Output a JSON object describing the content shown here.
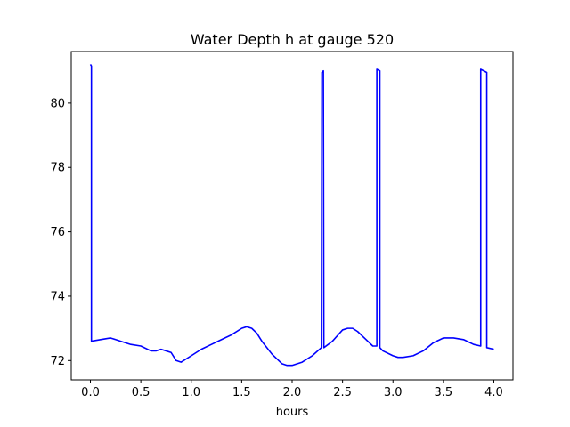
{
  "chart_data": {
    "type": "line",
    "title": "Water Depth h at gauge 520",
    "xlabel": "hours",
    "ylabel": "",
    "xlim": [
      -0.19,
      4.19
    ],
    "ylim": [
      71.4,
      81.6
    ],
    "xticks": [
      0.0,
      0.5,
      1.0,
      1.5,
      2.0,
      2.5,
      3.0,
      3.5,
      4.0
    ],
    "xtick_labels": [
      "0.0",
      "0.5",
      "1.0",
      "1.5",
      "2.0",
      "2.5",
      "3.0",
      "3.5",
      "4.0"
    ],
    "yticks": [
      72,
      74,
      76,
      78,
      80
    ],
    "ytick_labels": [
      "72",
      "74",
      "76",
      "78",
      "80"
    ],
    "grid": false,
    "series": [
      {
        "color": "#0000ff",
        "x": [
          0.0,
          0.01,
          0.01,
          0.1,
          0.2,
          0.25,
          0.3,
          0.4,
          0.5,
          0.6,
          0.65,
          0.7,
          0.75,
          0.8,
          0.85,
          0.9,
          1.0,
          1.1,
          1.2,
          1.3,
          1.4,
          1.5,
          1.55,
          1.6,
          1.65,
          1.7,
          1.8,
          1.9,
          1.95,
          2.0,
          2.1,
          2.2,
          2.29,
          2.295,
          2.31,
          2.315,
          2.4,
          2.5,
          2.55,
          2.6,
          2.65,
          2.7,
          2.8,
          2.84,
          2.84,
          2.87,
          2.87,
          2.9,
          3.0,
          3.05,
          3.1,
          3.2,
          3.3,
          3.4,
          3.5,
          3.6,
          3.7,
          3.8,
          3.87,
          3.87,
          3.93,
          3.93,
          4.0
        ],
        "y": [
          81.2,
          81.15,
          72.6,
          72.65,
          72.7,
          72.65,
          72.6,
          72.5,
          72.45,
          72.3,
          72.3,
          72.35,
          72.3,
          72.25,
          72.0,
          71.95,
          72.15,
          72.35,
          72.5,
          72.65,
          72.8,
          73.0,
          73.05,
          73.0,
          72.85,
          72.6,
          72.2,
          71.9,
          71.85,
          71.85,
          71.95,
          72.15,
          72.4,
          80.95,
          81.0,
          72.4,
          72.6,
          72.95,
          73.0,
          73.0,
          72.9,
          72.75,
          72.45,
          72.45,
          81.05,
          81.0,
          72.4,
          72.3,
          72.15,
          72.1,
          72.1,
          72.15,
          72.3,
          72.55,
          72.7,
          72.7,
          72.65,
          72.5,
          72.45,
          81.05,
          80.95,
          72.4,
          72.35
        ]
      }
    ]
  }
}
